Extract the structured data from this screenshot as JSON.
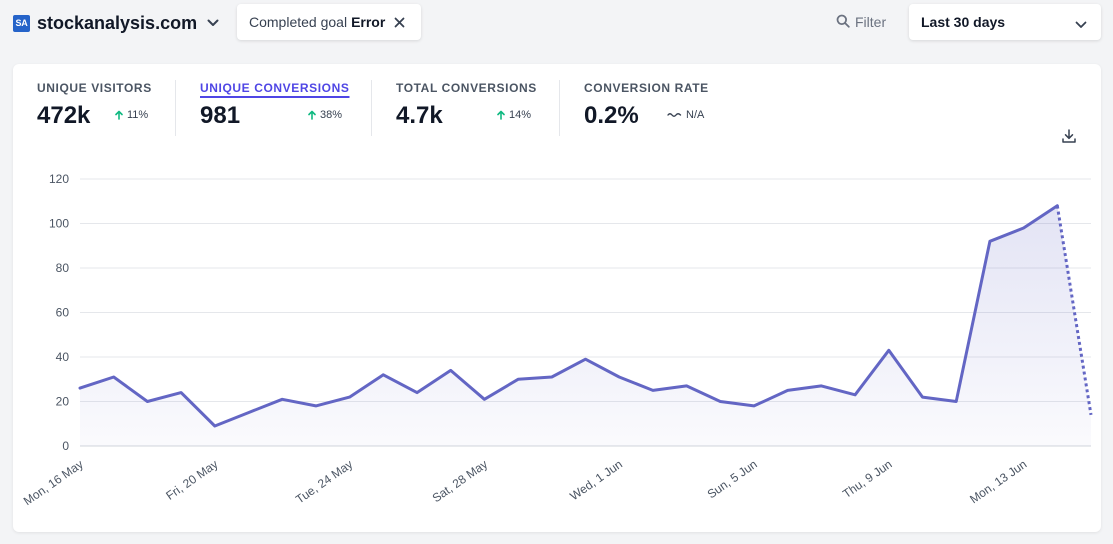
{
  "header": {
    "site_logo": "SA",
    "site_name": "stockanalysis.com",
    "goal_filter": {
      "label": "Completed goal",
      "value": "Error"
    },
    "filter_label": "Filter",
    "date_range": "Last 30 days"
  },
  "stats": [
    {
      "label": "UNIQUE VISITORS",
      "value": "472k",
      "change": "11%",
      "trend": "up"
    },
    {
      "label": "UNIQUE CONVERSIONS",
      "value": "981",
      "change": "38%",
      "trend": "up"
    },
    {
      "label": "TOTAL CONVERSIONS",
      "value": "4.7k",
      "change": "14%",
      "trend": "up"
    },
    {
      "label": "CONVERSION RATE",
      "value": "0.2%",
      "change": "N/A",
      "trend": "flat"
    }
  ],
  "colors": {
    "accent": "#4f46e5",
    "line": "#6366c4",
    "positive": "#10b981"
  },
  "chart_data": {
    "type": "line",
    "title": "",
    "xlabel": "",
    "ylabel": "",
    "ylim": [
      0,
      120
    ],
    "yticks": [
      0,
      20,
      40,
      60,
      80,
      100,
      120
    ],
    "grid": true,
    "x": [
      "Mon, 16 May",
      "Tue, 17 May",
      "Wed, 18 May",
      "Thu, 19 May",
      "Fri, 20 May",
      "Sat, 21 May",
      "Sun, 22 May",
      "Mon, 23 May",
      "Tue, 24 May",
      "Wed, 25 May",
      "Thu, 26 May",
      "Fri, 27 May",
      "Sat, 28 May",
      "Sun, 29 May",
      "Mon, 30 May",
      "Tue, 31 May",
      "Wed, 1 Jun",
      "Thu, 2 Jun",
      "Fri, 3 Jun",
      "Sat, 4 Jun",
      "Sun, 5 Jun",
      "Mon, 6 Jun",
      "Tue, 7 Jun",
      "Wed, 8 Jun",
      "Thu, 9 Jun",
      "Fri, 10 Jun",
      "Sat, 11 Jun",
      "Sun, 12 Jun",
      "Mon, 13 Jun",
      "Tue, 14 Jun",
      "Wed, 15 Jun"
    ],
    "x_tick_labels": [
      "Mon, 16 May",
      "Fri, 20 May",
      "Tue, 24 May",
      "Sat, 28 May",
      "Wed, 1 Jun",
      "Sun, 5 Jun",
      "Thu, 9 Jun",
      "Mon, 13 Jun"
    ],
    "x_tick_indices": [
      0,
      4,
      8,
      12,
      16,
      20,
      24,
      28
    ],
    "values": [
      26,
      31,
      20,
      24,
      9,
      15,
      21,
      18,
      22,
      32,
      24,
      34,
      21,
      30,
      31,
      39,
      31,
      25,
      27,
      20,
      18,
      25,
      27,
      23,
      43,
      22,
      20,
      92,
      98,
      108,
      14
    ],
    "dashed_from_index": 29
  }
}
